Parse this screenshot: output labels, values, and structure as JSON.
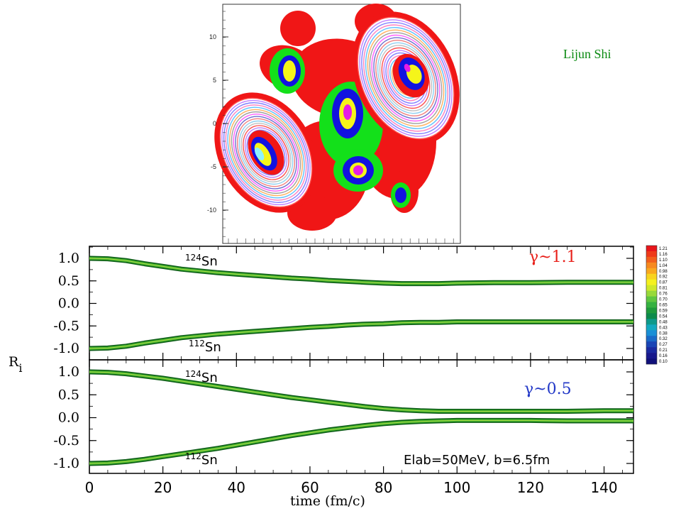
{
  "credit": "Lijun Shi",
  "annotation": "Elab=50MeV, b=6.5fm",
  "y_axis_label": "R",
  "y_axis_sub": "i",
  "x_axis_label": "time (fm/c)",
  "isotopes": {
    "heavy_mass": "124",
    "heavy_sym": "Sn",
    "light_mass": "112",
    "light_sym": "Sn"
  },
  "colorbar": {
    "labels": [
      "1.21",
      "1.16",
      "1.10",
      "1.04",
      "0.98",
      "0.92",
      "0.87",
      "0.81",
      "0.76",
      "0.70",
      "0.65",
      "0.59",
      "0.54",
      "0.48",
      "0.43",
      "0.38",
      "0.32",
      "0.27",
      "0.21",
      "0.16",
      "0.10"
    ],
    "colors": [
      "#e8161b",
      "#ef3a1a",
      "#f25f1c",
      "#f7891f",
      "#f9a81f",
      "#f8d31f",
      "#f5f11e",
      "#cfe82a",
      "#98d93a",
      "#5fc640",
      "#36b141",
      "#1e9a3c",
      "#0c8a4b",
      "#0d9a8a",
      "#12a9c0",
      "#1a8fd6",
      "#1a6ac8",
      "#1a45b5",
      "#1a2aa0",
      "#18188c",
      "#10107a"
    ]
  },
  "contour_panel": {
    "y_ticks": [
      "10",
      "5",
      "0",
      "-5",
      "-10"
    ]
  },
  "chart_data": [
    {
      "type": "line",
      "title": "γ~1.1",
      "xlabel": "time (fm/c)",
      "ylabel": "Ri",
      "xlim": [
        0,
        148
      ],
      "ylim": [
        -1.15,
        1.15
      ],
      "x_ticks": [
        0,
        20,
        40,
        60,
        80,
        100,
        120,
        140
      ],
      "y_ticks": [
        "1.0",
        "0.5",
        "0.0",
        "-0.5",
        "-1.0"
      ],
      "series": [
        {
          "name": "124Sn",
          "x": [
            0,
            5,
            10,
            15,
            20,
            25,
            30,
            35,
            40,
            45,
            50,
            55,
            60,
            65,
            70,
            75,
            80,
            85,
            90,
            95,
            100,
            110,
            120,
            130,
            140,
            148
          ],
          "y": [
            1.0,
            0.99,
            0.95,
            0.88,
            0.82,
            0.76,
            0.72,
            0.68,
            0.65,
            0.62,
            0.59,
            0.56,
            0.54,
            0.51,
            0.49,
            0.47,
            0.45,
            0.44,
            0.44,
            0.44,
            0.45,
            0.46,
            0.46,
            0.47,
            0.47,
            0.47
          ]
        },
        {
          "name": "112Sn",
          "x": [
            0,
            5,
            10,
            15,
            20,
            25,
            30,
            35,
            40,
            45,
            50,
            55,
            60,
            65,
            70,
            75,
            80,
            85,
            90,
            95,
            100,
            110,
            120,
            130,
            140,
            148
          ],
          "y": [
            -1.0,
            -0.99,
            -0.95,
            -0.88,
            -0.82,
            -0.76,
            -0.72,
            -0.68,
            -0.65,
            -0.62,
            -0.59,
            -0.56,
            -0.53,
            -0.51,
            -0.48,
            -0.46,
            -0.45,
            -0.43,
            -0.42,
            -0.42,
            -0.41,
            -0.41,
            -0.41,
            -0.41,
            -0.41,
            -0.41
          ]
        }
      ]
    },
    {
      "type": "line",
      "title": "γ~0.5",
      "xlabel": "time (fm/c)",
      "ylabel": "Ri",
      "xlim": [
        0,
        148
      ],
      "ylim": [
        -1.15,
        1.15
      ],
      "x_ticks": [
        0,
        20,
        40,
        60,
        80,
        100,
        120,
        140
      ],
      "y_ticks": [
        "1.0",
        "0.5",
        "0.0",
        "-0.5",
        "-1.0"
      ],
      "series": [
        {
          "name": "124Sn",
          "x": [
            0,
            5,
            10,
            15,
            20,
            25,
            30,
            35,
            40,
            45,
            50,
            55,
            60,
            65,
            70,
            75,
            80,
            85,
            90,
            95,
            100,
            110,
            120,
            130,
            140,
            148
          ],
          "y": [
            1.0,
            0.99,
            0.96,
            0.91,
            0.86,
            0.8,
            0.74,
            0.68,
            0.62,
            0.56,
            0.5,
            0.44,
            0.39,
            0.34,
            0.29,
            0.24,
            0.2,
            0.17,
            0.15,
            0.14,
            0.14,
            0.14,
            0.14,
            0.14,
            0.15,
            0.15
          ]
        },
        {
          "name": "112Sn",
          "x": [
            0,
            5,
            10,
            15,
            20,
            25,
            30,
            35,
            40,
            45,
            50,
            55,
            60,
            65,
            70,
            75,
            80,
            85,
            90,
            95,
            100,
            110,
            120,
            130,
            140,
            148
          ],
          "y": [
            -1.0,
            -0.99,
            -0.96,
            -0.91,
            -0.85,
            -0.79,
            -0.73,
            -0.67,
            -0.6,
            -0.53,
            -0.46,
            -0.39,
            -0.33,
            -0.27,
            -0.22,
            -0.17,
            -0.13,
            -0.1,
            -0.08,
            -0.07,
            -0.06,
            -0.06,
            -0.06,
            -0.07,
            -0.07,
            -0.07
          ]
        }
      ]
    }
  ]
}
